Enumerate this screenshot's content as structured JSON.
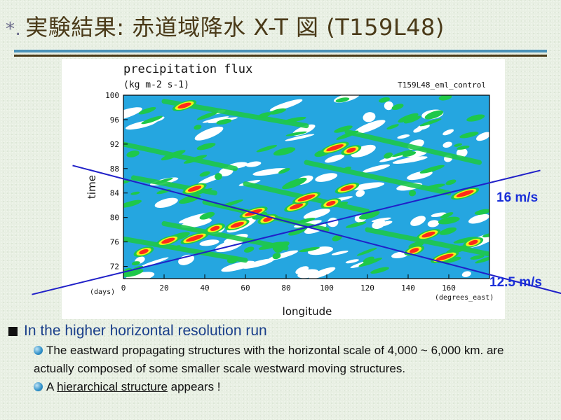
{
  "slide": {
    "title_mark": "*.",
    "title": "実験結果: 赤道域降水 X-T 図 (T159L48)",
    "bullet_main": "In the higher horizontal resolution run",
    "sub1": "The eastward propagating structures with the horizontal scale of 4,000 ~ 6,000 km. are actually composed of some smaller scale westward moving structures.",
    "sub2_prefix": "A ",
    "sub2_link": "hierarchical structure",
    "sub2_suffix": " appears !"
  },
  "colors": {
    "title": "#4a3a18",
    "accent_rule": "#4a92b8",
    "bullet_text": "#1a3f8a",
    "speed_label": "#1a2fd8",
    "speed_line": "#2020c8",
    "contour_levels": [
      "#ffffff",
      "#25a6e0",
      "#1ec84a",
      "#f2f21a",
      "#ff2a1a"
    ]
  },
  "chart_data": {
    "type": "heatmap",
    "title": "precipitation  flux",
    "subtitle": "(kg m-2 s-1)",
    "run_label": "T159L48_eml_control",
    "xlabel": "longitude",
    "x_unit": "(degrees_east)",
    "ylabel": "time",
    "y_unit": "(days)",
    "xlim": [
      0,
      180
    ],
    "ylim": [
      70,
      100
    ],
    "x_ticks": [
      0,
      20,
      40,
      60,
      80,
      100,
      120,
      140,
      160
    ],
    "y_ticks": [
      72,
      76,
      80,
      84,
      88,
      92,
      96,
      100
    ],
    "annotations": [
      {
        "label": "16 m/s",
        "line": {
          "x0": -45,
          "y0": 67.4,
          "x1": 205,
          "y1": 87.7
        }
      },
      {
        "label": "12.5 m/s",
        "line": {
          "x0": -25,
          "y0": 88.5,
          "x1": 230,
          "y1": 66.3
        }
      }
    ],
    "westward_bands": [
      {
        "x0": 0,
        "y0": 76.5,
        "x1": 60,
        "y1": 73
      },
      {
        "x0": 20,
        "y0": 79,
        "x1": 80,
        "y1": 75
      },
      {
        "x0": 40,
        "y0": 82.5,
        "x1": 100,
        "y1": 78
      },
      {
        "x0": 60,
        "y0": 85.5,
        "x1": 120,
        "y1": 81
      },
      {
        "x0": 90,
        "y0": 89,
        "x1": 160,
        "y1": 84
      },
      {
        "x0": 110,
        "y0": 94,
        "x1": 175,
        "y1": 89
      },
      {
        "x0": 20,
        "y0": 99,
        "x1": 90,
        "y1": 95
      },
      {
        "x0": 0,
        "y0": 92,
        "x1": 55,
        "y1": 88
      },
      {
        "x0": 120,
        "y0": 78,
        "x1": 180,
        "y1": 74
      },
      {
        "x0": 5,
        "y0": 86.5,
        "x1": 45,
        "y1": 84
      }
    ],
    "maxima": [
      {
        "x": 10,
        "y": 74.4
      },
      {
        "x": 22,
        "y": 76.2
      },
      {
        "x": 35,
        "y": 76.6
      },
      {
        "x": 45,
        "y": 78.2
      },
      {
        "x": 56,
        "y": 78.8
      },
      {
        "x": 64,
        "y": 80.8
      },
      {
        "x": 71,
        "y": 79.7
      },
      {
        "x": 85,
        "y": 81.8
      },
      {
        "x": 90,
        "y": 83.2
      },
      {
        "x": 102,
        "y": 82.3
      },
      {
        "x": 110,
        "y": 84.8
      },
      {
        "x": 104,
        "y": 91.4
      },
      {
        "x": 112,
        "y": 91.0
      },
      {
        "x": 30,
        "y": 98.3
      },
      {
        "x": 158,
        "y": 73.5
      },
      {
        "x": 143,
        "y": 74.6
      },
      {
        "x": 150,
        "y": 77.2
      },
      {
        "x": 168,
        "y": 83.9
      },
      {
        "x": 172,
        "y": 75.9
      },
      {
        "x": 35,
        "y": 84.7
      }
    ]
  }
}
